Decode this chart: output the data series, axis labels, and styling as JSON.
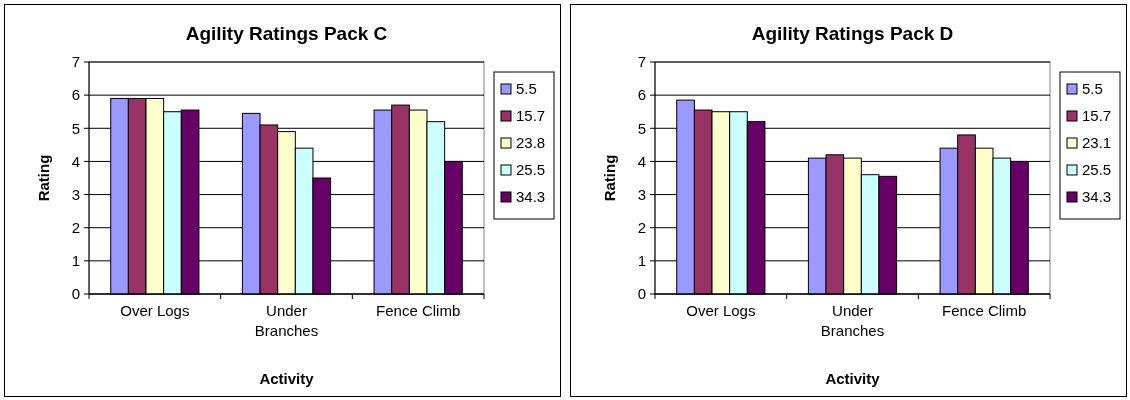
{
  "chart_data": [
    {
      "type": "bar",
      "title": "Agility Ratings Pack C",
      "xlabel": "Activity",
      "ylabel": "Rating",
      "categories": [
        "Over Logs",
        "Under Branches",
        "Fence Climb"
      ],
      "series": [
        {
          "name": "5.5",
          "color": "#9999ff",
          "values": [
            5.9,
            5.45,
            5.55
          ]
        },
        {
          "name": "15.7",
          "color": "#993366",
          "values": [
            5.9,
            5.1,
            5.7
          ]
        },
        {
          "name": "23.8",
          "color": "#ffffcc",
          "values": [
            5.9,
            4.9,
            5.55
          ]
        },
        {
          "name": "25.5",
          "color": "#ccffff",
          "values": [
            5.5,
            4.4,
            5.2
          ]
        },
        {
          "name": "34.3",
          "color": "#660066",
          "values": [
            5.55,
            3.5,
            4.0
          ]
        }
      ],
      "ylim": [
        0,
        7
      ],
      "yticks": [
        0,
        1,
        2,
        3,
        4,
        5,
        6,
        7
      ],
      "grid": "y",
      "legend": "right"
    },
    {
      "type": "bar",
      "title": "Agility Ratings Pack D",
      "xlabel": "Activity",
      "ylabel": "Rating",
      "categories": [
        "Over Logs",
        "Under Branches",
        "Fence Climb"
      ],
      "series": [
        {
          "name": "5.5",
          "color": "#9999ff",
          "values": [
            5.85,
            4.1,
            4.4
          ]
        },
        {
          "name": "15.7",
          "color": "#993366",
          "values": [
            5.55,
            4.2,
            4.8
          ]
        },
        {
          "name": "23.1",
          "color": "#ffffcc",
          "values": [
            5.5,
            4.1,
            4.4
          ]
        },
        {
          "name": "25.5",
          "color": "#ccffff",
          "values": [
            5.5,
            3.6,
            4.1
          ]
        },
        {
          "name": "34.3",
          "color": "#660066",
          "values": [
            5.2,
            3.55,
            4.0
          ]
        }
      ],
      "ylim": [
        0,
        7
      ],
      "yticks": [
        0,
        1,
        2,
        3,
        4,
        5,
        6,
        7
      ],
      "grid": "y",
      "legend": "right"
    }
  ]
}
